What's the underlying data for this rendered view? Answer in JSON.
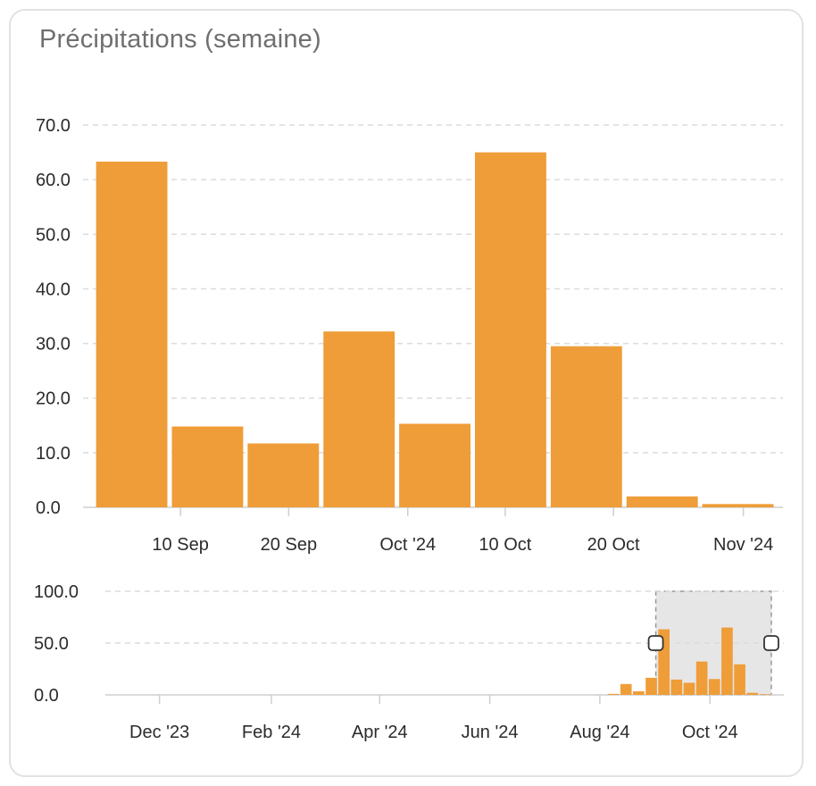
{
  "card": {
    "title": "Précipitations (semaine)"
  },
  "colors": {
    "bar": "#ef9d38",
    "selection_fill": "#e6e6e6",
    "selection_border": "#999999",
    "grid": "#dcdcdc"
  },
  "chart_data": [
    {
      "type": "bar",
      "title": "Précipitations (semaine)",
      "x_type": "time",
      "x": [
        "2024-09-02",
        "2024-09-09",
        "2024-09-16",
        "2024-09-23",
        "2024-09-30",
        "2024-10-07",
        "2024-10-14",
        "2024-10-21",
        "2024-10-28"
      ],
      "values": [
        63.3,
        14.8,
        11.7,
        32.2,
        15.3,
        65.0,
        29.5,
        2.0,
        0.6
      ],
      "x_range": [
        "2024-09-01",
        "2024-11-04"
      ],
      "ylim": [
        0,
        70
      ],
      "y_ticks": [
        "0.0",
        "10.0",
        "20.0",
        "30.0",
        "40.0",
        "50.0",
        "60.0",
        "70.0"
      ],
      "x_ticks": [
        {
          "date": "2024-09-10",
          "label": "10 Sep"
        },
        {
          "date": "2024-09-20",
          "label": "20 Sep"
        },
        {
          "date": "2024-10-01",
          "label": "Oct '24"
        },
        {
          "date": "2024-10-10",
          "label": "10 Oct"
        },
        {
          "date": "2024-10-20",
          "label": "20 Oct"
        },
        {
          "date": "2024-11-01",
          "label": "Nov '24"
        }
      ],
      "grid": true,
      "legend": false
    },
    {
      "type": "bar",
      "x_type": "time",
      "x": [
        "2024-08-05",
        "2024-08-12",
        "2024-08-19",
        "2024-08-26",
        "2024-09-02",
        "2024-09-09",
        "2024-09-16",
        "2024-09-23",
        "2024-09-30",
        "2024-10-07",
        "2024-10-14",
        "2024-10-21",
        "2024-10-28"
      ],
      "values": [
        1.0,
        10.5,
        3.5,
        16.5,
        63.3,
        14.8,
        11.7,
        32.2,
        15.3,
        65.0,
        29.5,
        2.0,
        0.6
      ],
      "x_range": [
        "2023-11-01",
        "2024-11-07"
      ],
      "ylim": [
        0,
        100
      ],
      "y_ticks": [
        "0.0",
        "50.0",
        "100.0"
      ],
      "x_ticks": [
        {
          "date": "2023-12-01",
          "label": "Dec '23"
        },
        {
          "date": "2024-02-01",
          "label": "Feb '24"
        },
        {
          "date": "2024-04-01",
          "label": "Apr '24"
        },
        {
          "date": "2024-06-01",
          "label": "Jun '24"
        },
        {
          "date": "2024-08-01",
          "label": "Aug '24"
        },
        {
          "date": "2024-10-01",
          "label": "Oct '24"
        }
      ],
      "selection": [
        "2024-09-01",
        "2024-11-04"
      ],
      "grid": true,
      "legend": false
    }
  ]
}
